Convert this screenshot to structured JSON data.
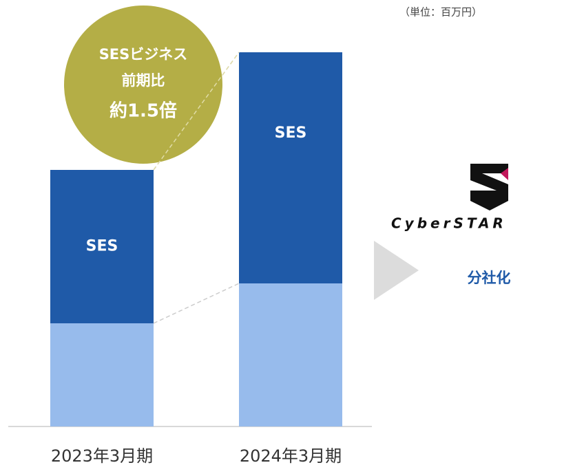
{
  "chart_data": {
    "type": "stacked_bar",
    "unit_note": "（単位：百万円）",
    "categories": [
      "2023年3月期",
      "2024年3月期"
    ],
    "series": [
      {
        "color": "#97bbec",
        "values": [
          150,
          208
        ]
      },
      {
        "name": "SES",
        "color": "#1f5aa8",
        "values": [
          223,
          336
        ]
      }
    ],
    "ylim": [
      0,
      600
    ],
    "annotation": {
      "lines": [
        "SESビジネス",
        "前期比",
        "約1.5倍"
      ],
      "color": "#b4ae46"
    },
    "logo_text": "CyberSTAR",
    "side_label": "分社化"
  }
}
